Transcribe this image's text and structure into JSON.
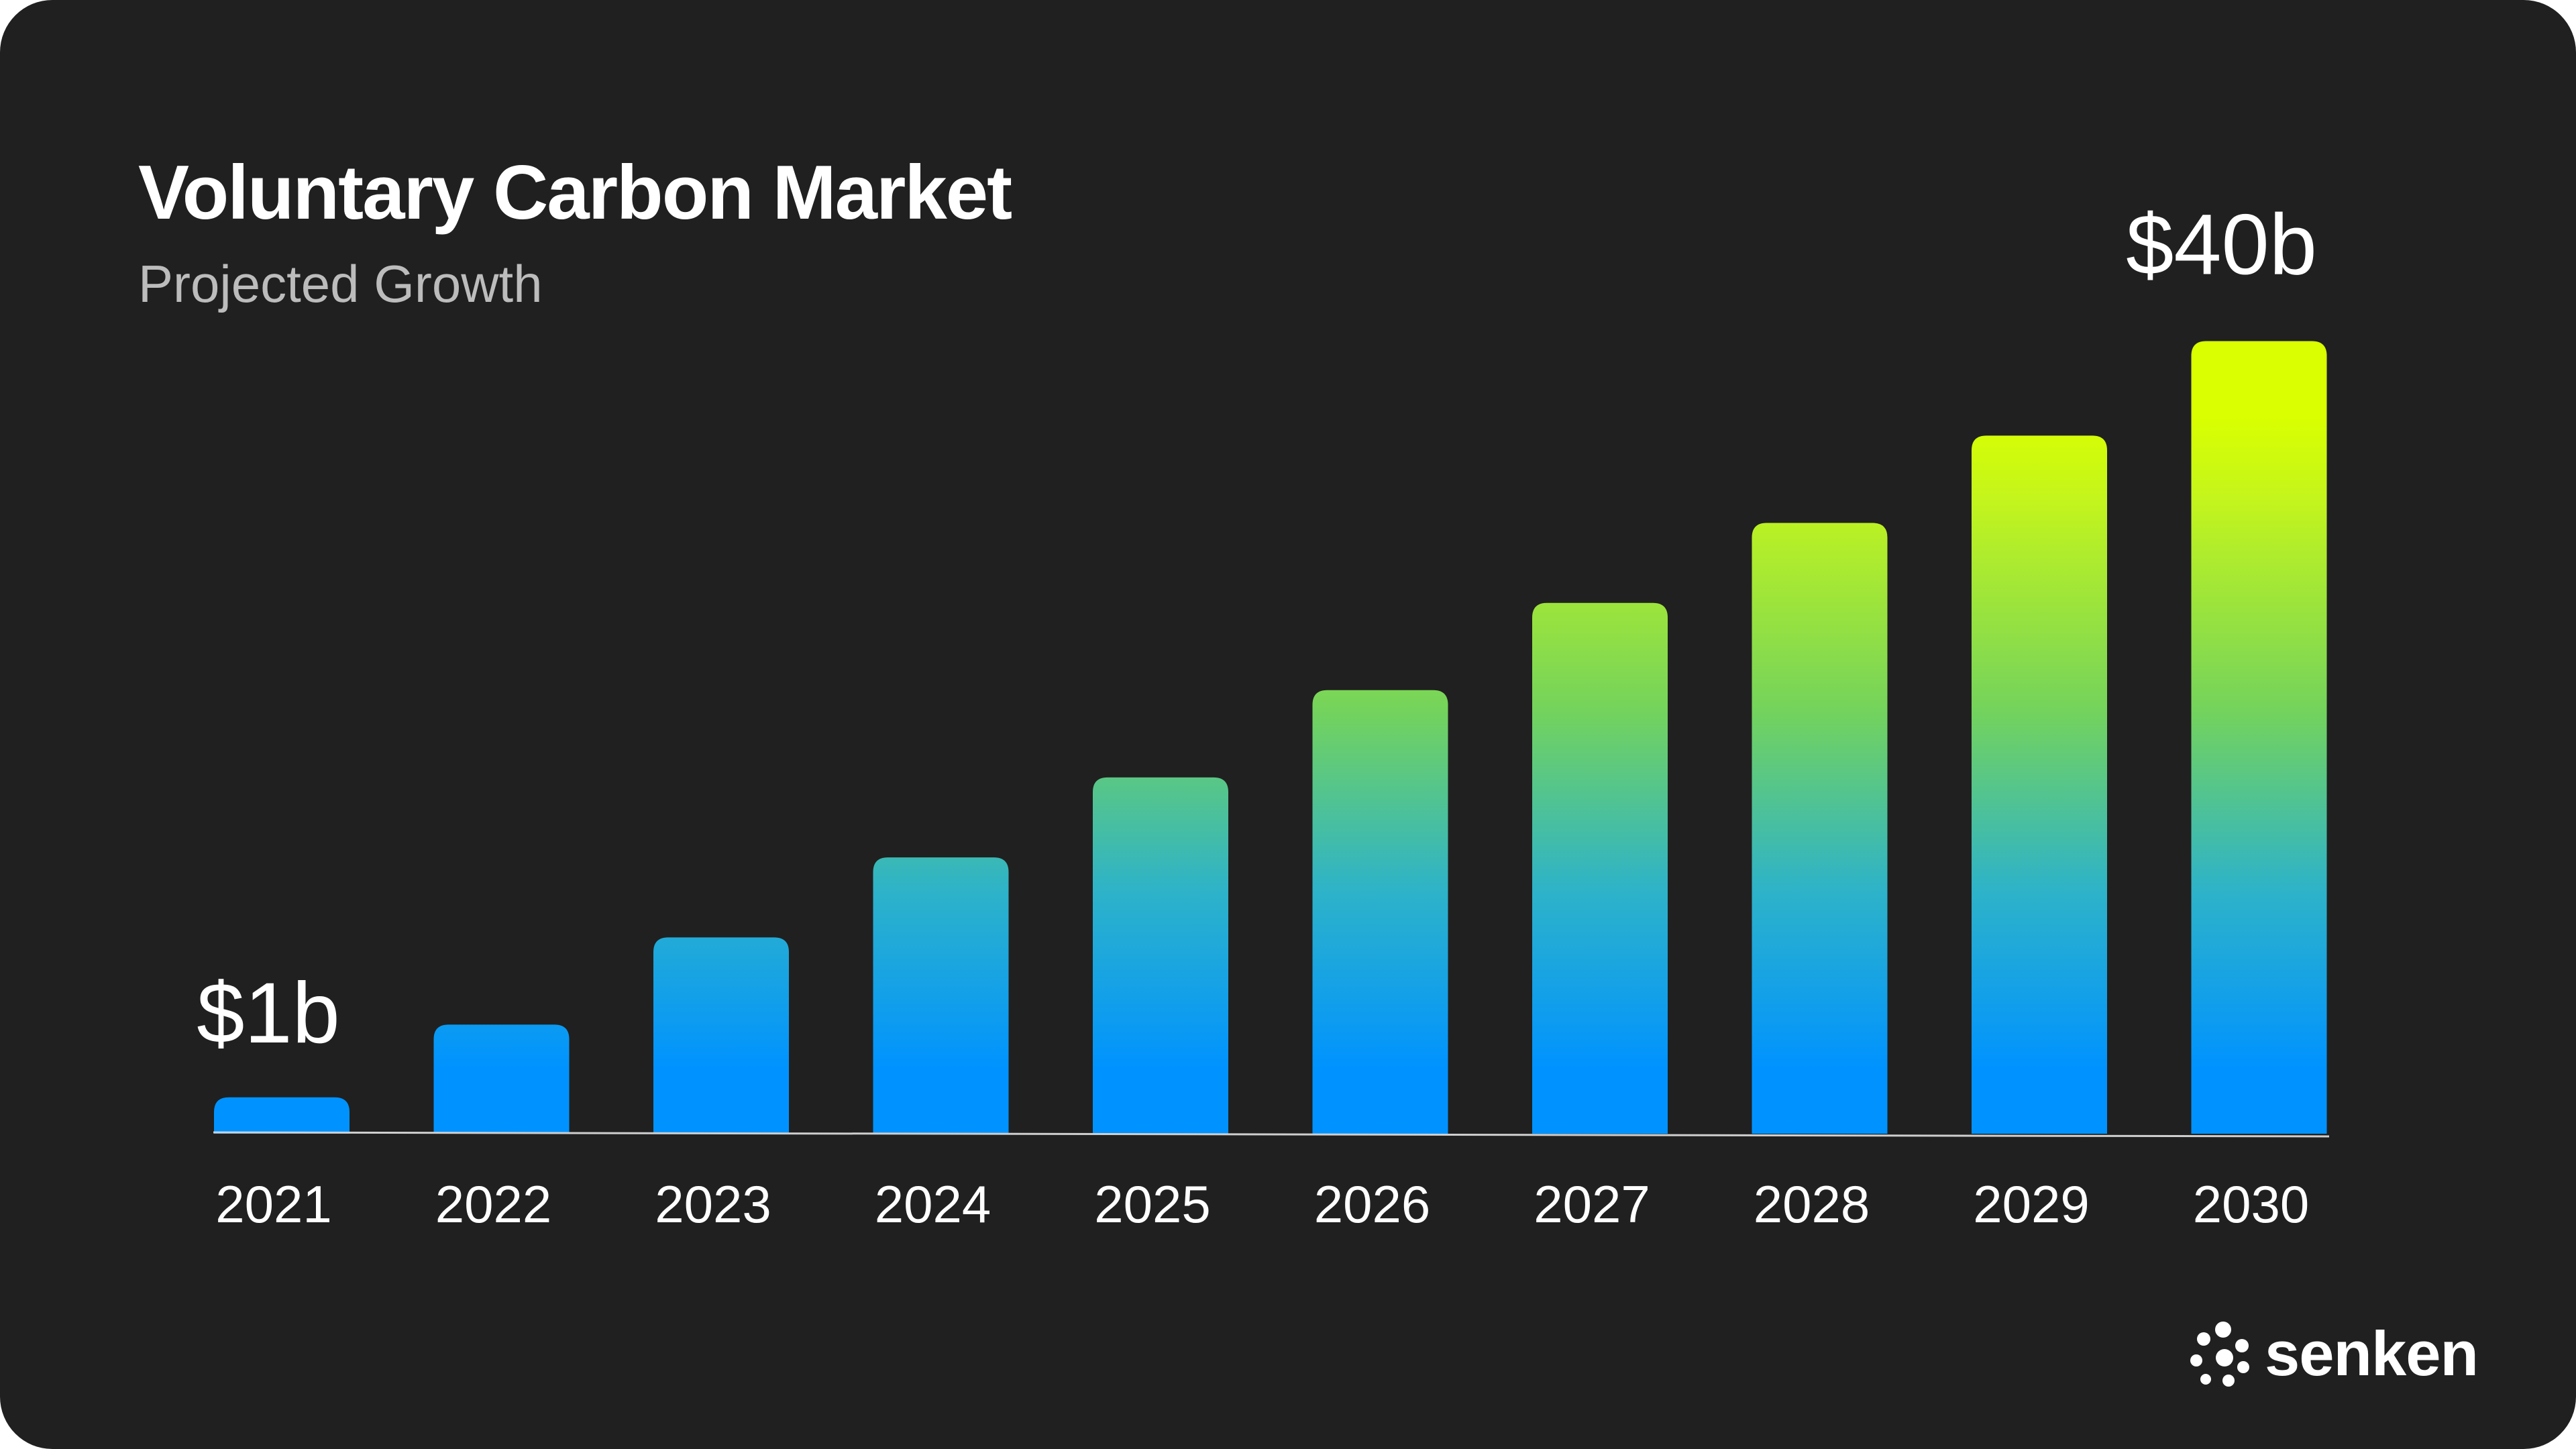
{
  "header": {
    "title": "Voluntary Carbon Market",
    "subtitle": "Projected Growth"
  },
  "brand": {
    "name": "senken",
    "logo_icon": "dotted-flower-icon"
  },
  "colors": {
    "background": "#202020",
    "gradient_low": "#0093ff",
    "gradient_mid": "#74d35c",
    "gradient_high": "#d9ff00",
    "text": "#ffffff",
    "subtitle": "#bcbcbc"
  },
  "chart_data": {
    "type": "bar",
    "title": "Voluntary Carbon Market",
    "subtitle": "Projected Growth",
    "categories": [
      "2021",
      "2022",
      "2023",
      "2024",
      "2025",
      "2026",
      "2027",
      "2028",
      "2029",
      "2030"
    ],
    "values": [
      2.5,
      7.5,
      13.5,
      19,
      24.5,
      30.5,
      36.5,
      42,
      48,
      54.5
    ],
    "value_unit": "relative bar height (unlabeled axis)",
    "data_labels": [
      {
        "category": "2021",
        "text": "$1b"
      },
      {
        "category": "2030",
        "text": "$40b"
      }
    ],
    "xlabel": "",
    "ylabel": "",
    "ylim": [
      0,
      56
    ],
    "grid": false,
    "legend": "none"
  }
}
